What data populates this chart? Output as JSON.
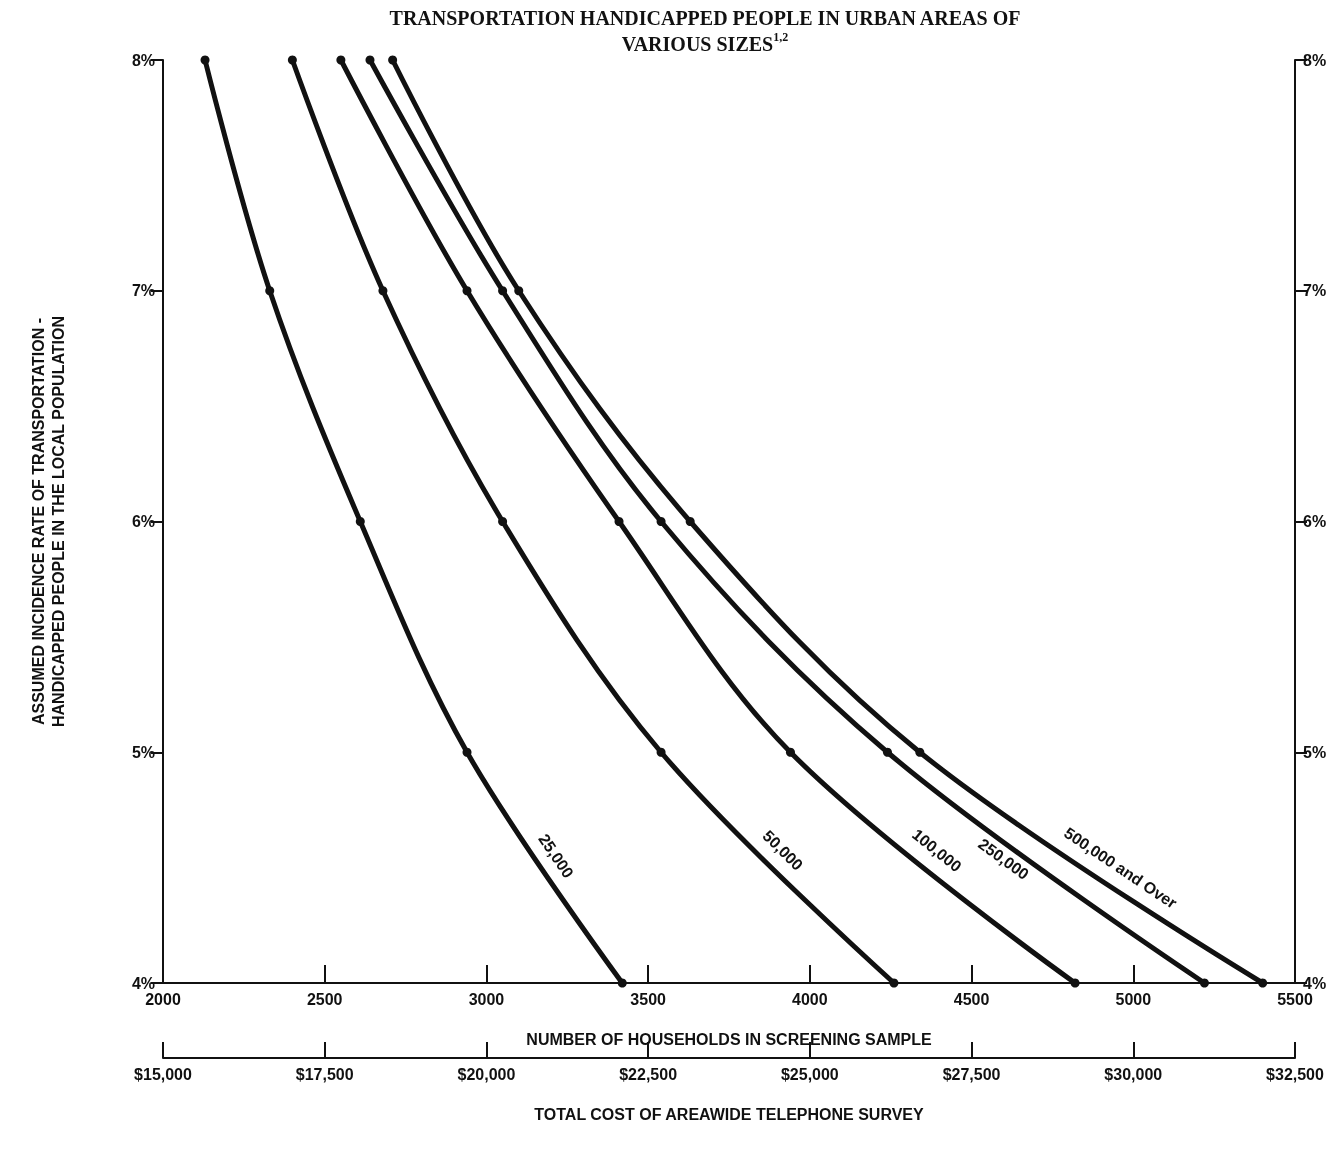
{
  "chart_data": {
    "type": "line",
    "title": "TRANSPORTATION HANDICAPPED PEOPLE IN URBAN AREAS OF\nVARIOUS SIZES$^{1,2}$",
    "xlabel": "NUMBER OF HOUSEHOLDS IN SCREENING SAMPLE",
    "ylabel": "ASSUMED INCIDENCE RATE OF TRANSPORTATION -\nHANDICAPPED PEOPLE IN THE LOCAL POPULATION",
    "x2label": "TOTAL COST OF AREAWIDE TELEPHONE SURVEY",
    "series": [
      {
        "name": "25,000",
        "color": "#111111",
        "x": [
          2130,
          2330,
          2610,
          2940,
          3420
        ],
        "values": [
          8,
          7,
          6,
          5,
          4
        ]
      },
      {
        "name": "50,000",
        "color": "#111111",
        "x": [
          2400,
          2680,
          3050,
          3540,
          4260
        ],
        "values": [
          8,
          7,
          6,
          5,
          4
        ]
      },
      {
        "name": "100,000",
        "color": "#111111",
        "x": [
          2550,
          2940,
          3410,
          3940,
          4820
        ],
        "values": [
          8,
          7,
          6,
          5,
          4
        ]
      },
      {
        "name": "250,000",
        "color": "#111111",
        "x": [
          2640,
          3050,
          3540,
          4240,
          5220
        ],
        "values": [
          8,
          7,
          6,
          5,
          4
        ]
      },
      {
        "name": "500,000 and Over",
        "color": "#111111",
        "x": [
          2710,
          3100,
          3630,
          4340,
          5400
        ],
        "values": [
          8,
          7,
          6,
          5,
          4
        ]
      }
    ],
    "xlim": [
      2000,
      5500
    ],
    "xticks": [
      2000,
      2500,
      3000,
      3500,
      4000,
      4500,
      5000,
      5500
    ],
    "ylim": [
      4,
      8
    ],
    "yticks": [
      {
        "value": 4,
        "label": "4%"
      },
      {
        "value": 5,
        "label": "5%"
      },
      {
        "value": 6,
        "label": "6%"
      },
      {
        "value": 7,
        "label": "7%"
      },
      {
        "value": 8,
        "label": "8%"
      }
    ],
    "y2lim": [
      4,
      8
    ],
    "y2ticks": [
      {
        "value": 4,
        "label": "4%"
      },
      {
        "value": 5,
        "label": "5%"
      },
      {
        "value": 6,
        "label": "6%"
      },
      {
        "value": 7,
        "label": "7%"
      },
      {
        "value": 8,
        "label": "8%"
      }
    ],
    "x2lim": [
      15000,
      32500
    ],
    "x2ticks": [
      {
        "value": 15000,
        "label": "$15,000"
      },
      {
        "value": 17500,
        "label": "$17,500"
      },
      {
        "value": 20000,
        "label": "$20,000"
      },
      {
        "value": 22500,
        "label": "$22,500"
      },
      {
        "value": 25000,
        "label": "$25,000"
      },
      {
        "value": 27500,
        "label": "$27,500"
      },
      {
        "value": 30000,
        "label": "$30,000"
      },
      {
        "value": 32500,
        "label": "$32,500"
      }
    ],
    "grid": false,
    "legend": false,
    "marker": "circle",
    "line_style": "solid"
  }
}
